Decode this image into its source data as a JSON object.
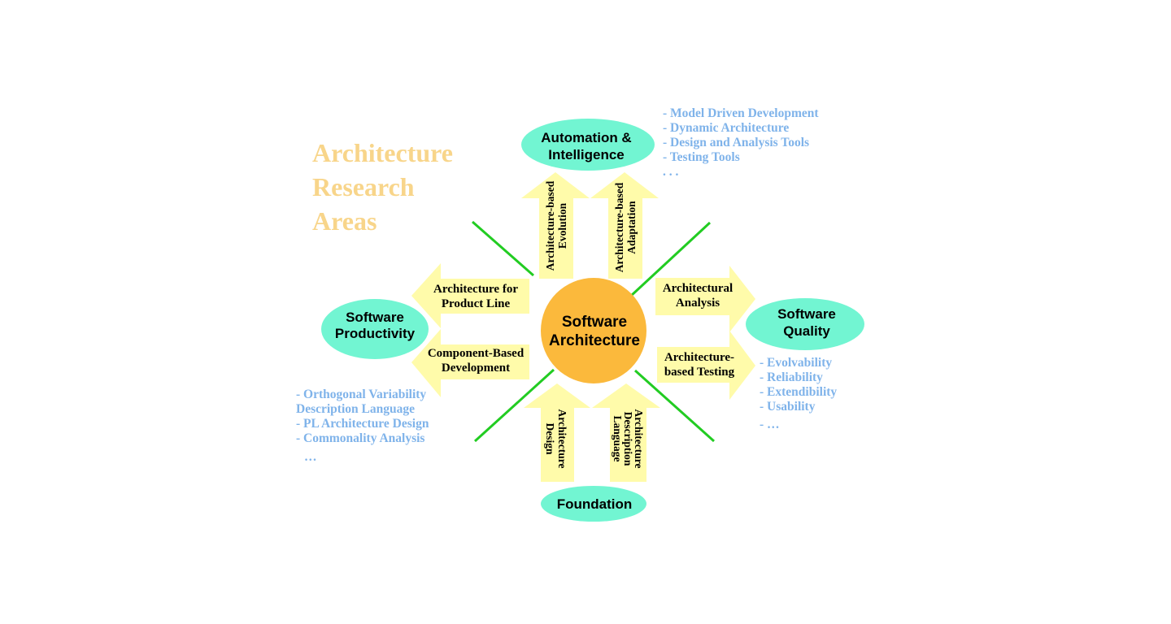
{
  "title": [
    "Architecture",
    "Research",
    "Areas"
  ],
  "center": [
    "Software",
    "Architecture"
  ],
  "nodes": {
    "automation": [
      "Automation &",
      "Intelligence"
    ],
    "productivity": [
      "Software",
      "Productivity"
    ],
    "quality": [
      "Software",
      "Quality"
    ],
    "foundation": "Foundation"
  },
  "arrows": {
    "product_line": [
      "Architecture for",
      "Product Line"
    ],
    "cbd": [
      "Component-Based",
      "Development"
    ],
    "analysis": [
      "Architectural",
      "Analysis"
    ],
    "testing": [
      "Architecture-",
      "based Testing"
    ],
    "evolution": [
      "Architecture-based",
      "Evolution"
    ],
    "adaptation": [
      "Architecture-based",
      "Adaptation"
    ],
    "design": [
      "Architecture",
      "Design"
    ],
    "adl": [
      "Architecture",
      "Description",
      "Language"
    ]
  },
  "notes": {
    "automation": [
      "- Model Driven  Development",
      "- Dynamic  Architecture",
      "- Design and Analysis Tools",
      "- Testing Tools",
      " . . ."
    ],
    "productivity": [
      "- Orthogonal Variability",
      "Description Language",
      "- PL Architecture Design",
      "- Commonality Analysis",
      "…"
    ],
    "quality": [
      "- Evolvability",
      "- Reliability",
      "- Extendibility",
      "- Usability",
      "- …"
    ]
  },
  "colors": {
    "title": "#F8D58A",
    "arrow": "#FFFBAA",
    "node": "#72F5D2",
    "center": "#FBB93C",
    "line": "#22CC22",
    "note": "#7FB3EA"
  }
}
